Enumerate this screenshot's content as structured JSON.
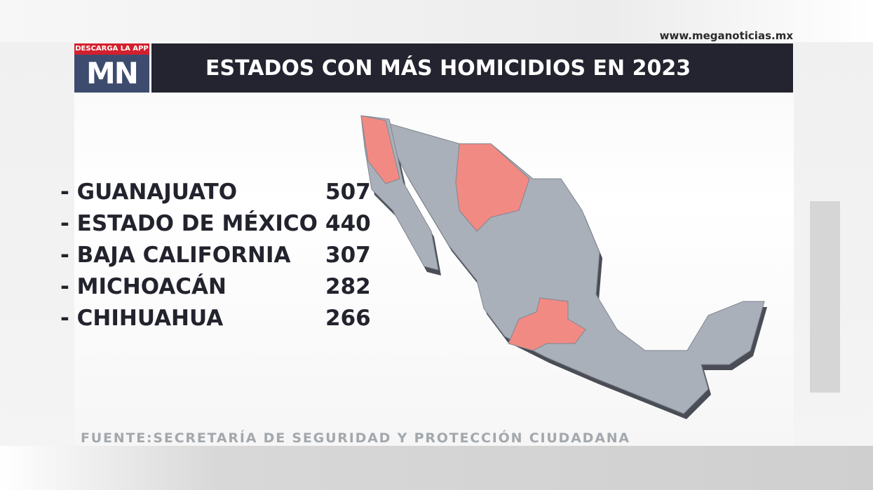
{
  "header": {
    "url": "www.meganoticias.mx",
    "badge": "DESCARGA LA APP",
    "logo": "MN",
    "title": "ESTADOS CON MÁS HOMICIDIOS EN 2023"
  },
  "list": {
    "items": [
      {
        "name": "- GUANAJUATO",
        "value": 507
      },
      {
        "name": "- ESTADO DE MÉXICO",
        "value": 440
      },
      {
        "name": "- BAJA CALIFORNIA",
        "value": 307
      },
      {
        "name": "- MICHOACÁN",
        "value": 282
      },
      {
        "name": "- CHIHUAHUA",
        "value": 266
      }
    ]
  },
  "footer": {
    "source": "FUENTE:SECRETARÍA DE SEGURIDAD Y PROTECCIÓN CIUDADANA"
  }
}
